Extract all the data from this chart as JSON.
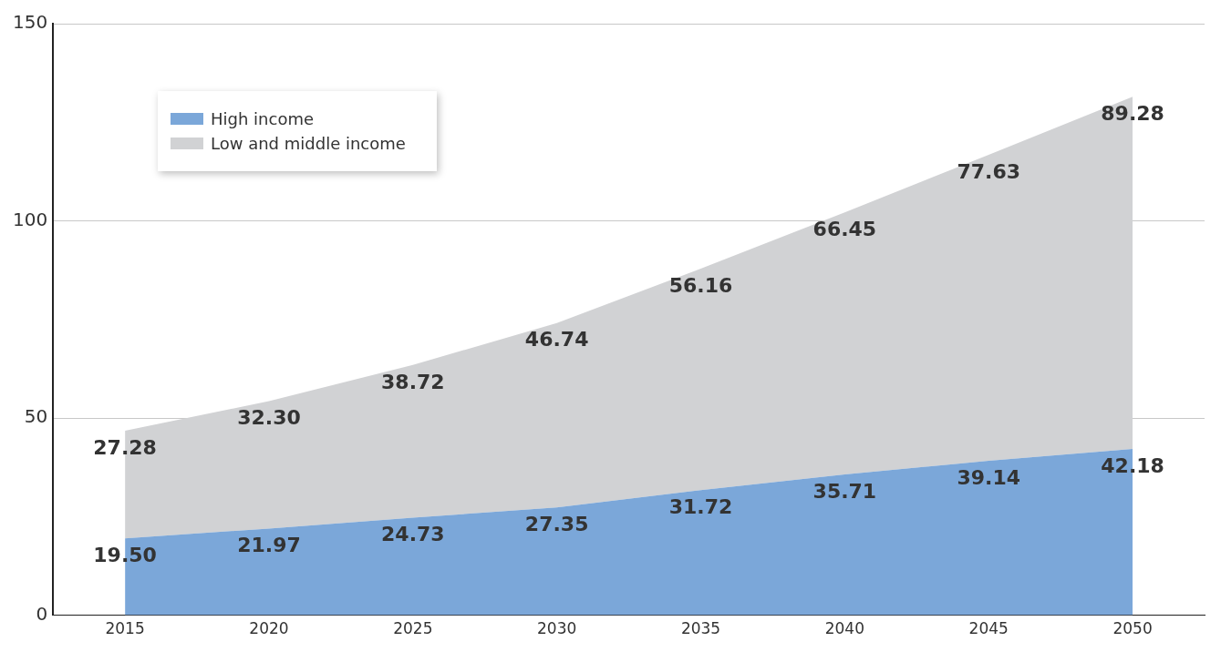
{
  "chart_data": {
    "type": "area",
    "stacked": true,
    "categories": [
      "2015",
      "2020",
      "2025",
      "2030",
      "2035",
      "2040",
      "2045",
      "2050"
    ],
    "series": [
      {
        "name": "High income",
        "color": "#7ba7d9",
        "values": [
          19.5,
          21.97,
          24.73,
          27.35,
          31.72,
          35.71,
          39.14,
          42.18
        ],
        "value_labels": [
          "19.50",
          "21.97",
          "24.73",
          "27.35",
          "31.72",
          "35.71",
          "39.14",
          "42.18"
        ]
      },
      {
        "name": "Low and middle income",
        "color": "#d1d2d4",
        "values": [
          27.28,
          32.3,
          38.72,
          46.74,
          56.16,
          66.45,
          77.63,
          89.28
        ],
        "value_labels": [
          "27.28",
          "32.30",
          "38.72",
          "46.74",
          "56.16",
          "66.45",
          "77.63",
          "89.28"
        ]
      }
    ],
    "ylim": [
      0,
      150
    ],
    "yticks": [
      0,
      50,
      100,
      150
    ],
    "grid": "y",
    "legend": "top left"
  }
}
